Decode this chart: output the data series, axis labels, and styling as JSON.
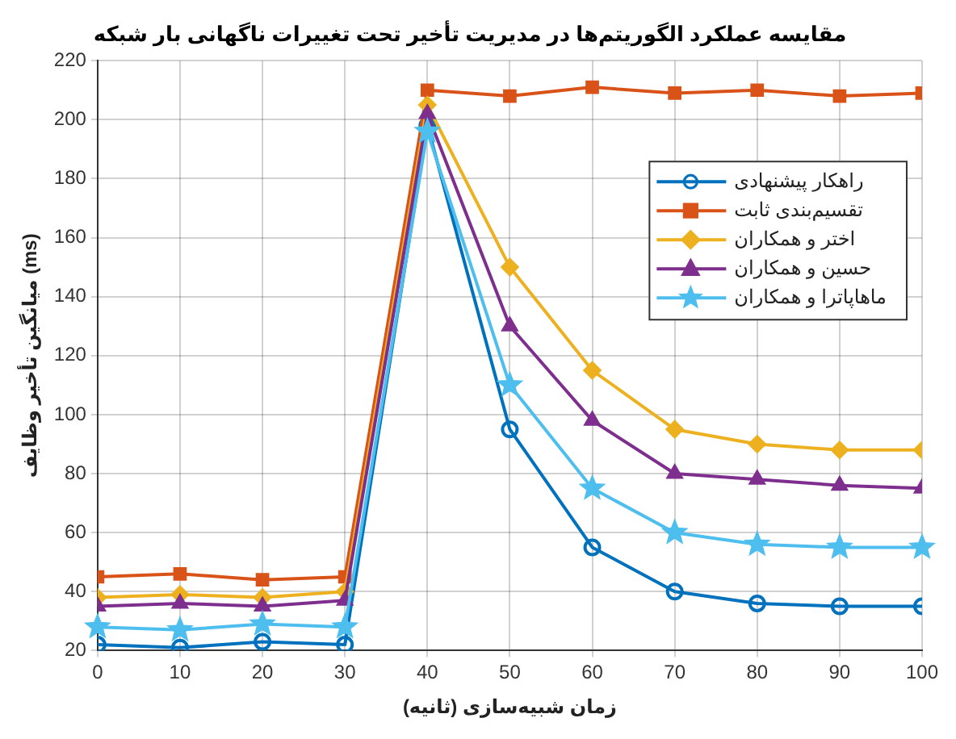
{
  "chart_data": {
    "type": "line",
    "title": "مقایسه عملکرد الگوریتم‌ها در مدیریت تأخیر تحت تغییرات ناگهانی بار شبکه",
    "xlabel": "زمان شبیه‌سازی (ثانیه)",
    "ylabel": "میانگین تأخیر وظایف (ms)",
    "x": [
      0,
      10,
      20,
      30,
      40,
      50,
      60,
      70,
      80,
      90,
      100
    ],
    "xlim": [
      0,
      100
    ],
    "xticks": [
      0,
      10,
      20,
      30,
      40,
      50,
      60,
      70,
      80,
      90,
      100
    ],
    "ylim": [
      20,
      220
    ],
    "yticks": [
      20,
      40,
      60,
      80,
      100,
      120,
      140,
      160,
      180,
      200,
      220
    ],
    "grid": true,
    "legend": "top right",
    "line_style": "solid",
    "series": [
      {
        "name": "راهکار پیشنهادی",
        "color": "#0072bd",
        "marker": "circle",
        "values": [
          22,
          21,
          23,
          22,
          198,
          95,
          55,
          40,
          36,
          35,
          35
        ]
      },
      {
        "name": "تقسیم‌بندی ثابت",
        "color": "#d95319",
        "marker": "square",
        "values": [
          45,
          46,
          44,
          45,
          210,
          208,
          211,
          209,
          210,
          208,
          209
        ]
      },
      {
        "name": "اختر و همکاران",
        "color": "#edb120",
        "marker": "diamond",
        "values": [
          38,
          39,
          38,
          40,
          205,
          150,
          115,
          95,
          90,
          88,
          88
        ]
      },
      {
        "name": "حسین و همکاران",
        "color": "#7e2f8e",
        "marker": "triangle",
        "values": [
          35,
          36,
          35,
          37,
          202,
          130,
          98,
          80,
          78,
          76,
          75
        ]
      },
      {
        "name": "ماهاپاترا و همکاران",
        "color": "#4dbeee",
        "marker": "star",
        "values": [
          28,
          27,
          29,
          28,
          196,
          110,
          75,
          60,
          56,
          55,
          55
        ]
      }
    ]
  }
}
